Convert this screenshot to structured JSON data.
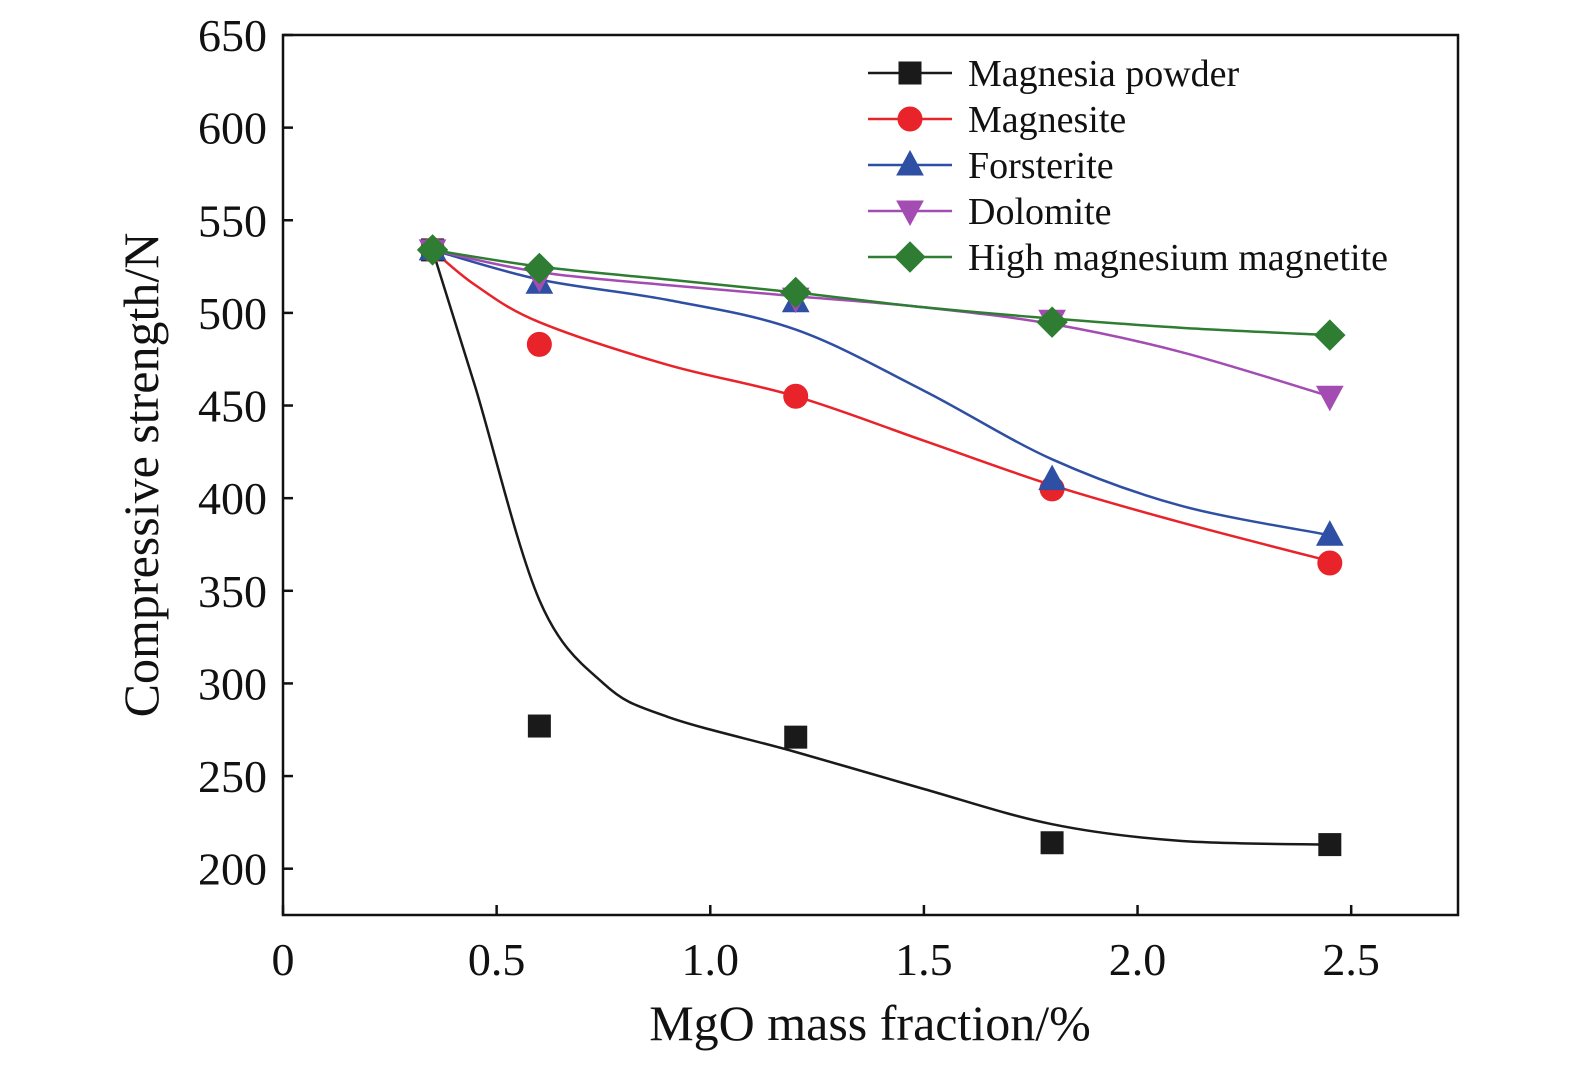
{
  "chart_data": {
    "type": "line",
    "title": "",
    "xlabel": "MgO mass fraction/%",
    "ylabel": "Compressive strength/N",
    "xlim": [
      0,
      2.75
    ],
    "ylim": [
      175,
      650
    ],
    "xticks": [
      0,
      0.5,
      1.0,
      1.5,
      2.0,
      2.5
    ],
    "xtick_labels": [
      "0",
      "0.5",
      "1.0",
      "1.5",
      "2.0",
      "2.5"
    ],
    "yticks": [
      200,
      250,
      300,
      350,
      400,
      450,
      500,
      550,
      600,
      650
    ],
    "ytick_labels": [
      "200",
      "250",
      "300",
      "350",
      "400",
      "450",
      "500",
      "550",
      "600",
      "650"
    ],
    "grid": false,
    "legend_position": "top-right",
    "series": [
      {
        "name": "Magnesia powder",
        "color": "#1a1a1a",
        "marker": "square",
        "x": [
          0.35,
          0.6,
          1.2,
          1.8,
          2.45
        ],
        "y": [
          534,
          277,
          271,
          214,
          213
        ],
        "fit_curve": [
          [
            0.35,
            534
          ],
          [
            0.45,
            460
          ],
          [
            0.6,
            345
          ],
          [
            0.75,
            300
          ],
          [
            0.9,
            282
          ],
          [
            1.2,
            263
          ],
          [
            1.5,
            243
          ],
          [
            1.8,
            224
          ],
          [
            2.1,
            215
          ],
          [
            2.45,
            213
          ]
        ]
      },
      {
        "name": "Magnesite",
        "color": "#e8232a",
        "marker": "circle",
        "x": [
          0.35,
          0.6,
          1.2,
          1.8,
          2.45
        ],
        "y": [
          534,
          483,
          455,
          405,
          365
        ],
        "fit_curve": [
          [
            0.35,
            534
          ],
          [
            0.45,
            515
          ],
          [
            0.6,
            495
          ],
          [
            0.9,
            472
          ],
          [
            1.2,
            455
          ],
          [
            1.5,
            431
          ],
          [
            1.8,
            407
          ],
          [
            2.1,
            387
          ],
          [
            2.45,
            366
          ]
        ]
      },
      {
        "name": "Forsterite",
        "color": "#2e4fa3",
        "marker": "triangle-up",
        "x": [
          0.35,
          0.6,
          1.2,
          1.8,
          2.45
        ],
        "y": [
          534,
          516,
          506,
          410,
          380
        ],
        "fit_curve": [
          [
            0.35,
            534
          ],
          [
            0.6,
            518
          ],
          [
            0.9,
            507
          ],
          [
            1.2,
            491
          ],
          [
            1.5,
            458
          ],
          [
            1.8,
            421
          ],
          [
            2.1,
            396
          ],
          [
            2.45,
            380
          ]
        ]
      },
      {
        "name": "Dolomite",
        "color": "#a34db2",
        "marker": "triangle-down",
        "x": [
          0.35,
          0.6,
          1.2,
          1.8,
          2.45
        ],
        "y": [
          534,
          519,
          508,
          496,
          455
        ],
        "fit_curve": [
          [
            0.35,
            534
          ],
          [
            0.6,
            522
          ],
          [
            0.9,
            515
          ],
          [
            1.2,
            509
          ],
          [
            1.5,
            503
          ],
          [
            1.8,
            494
          ],
          [
            2.1,
            479
          ],
          [
            2.45,
            455
          ]
        ]
      },
      {
        "name": "High magnesium magnetite",
        "color": "#2e7d32",
        "marker": "diamond",
        "x": [
          0.35,
          0.6,
          1.2,
          1.8,
          2.45
        ],
        "y": [
          534,
          524,
          511,
          495,
          488
        ],
        "fit_curve": [
          [
            0.35,
            534
          ],
          [
            0.6,
            525
          ],
          [
            0.9,
            518
          ],
          [
            1.2,
            511
          ],
          [
            1.5,
            503
          ],
          [
            1.8,
            497
          ],
          [
            2.1,
            492
          ],
          [
            2.45,
            488
          ]
        ]
      }
    ]
  }
}
